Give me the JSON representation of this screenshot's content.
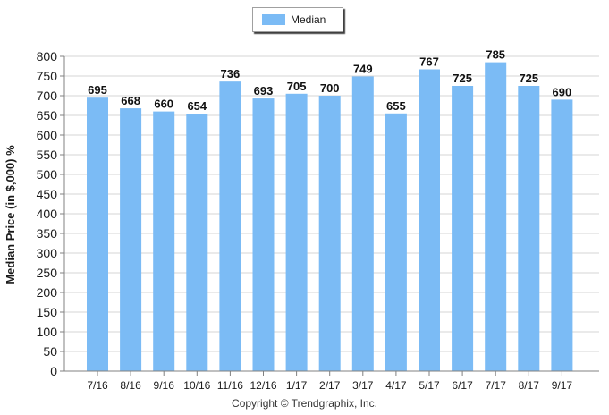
{
  "legend": {
    "label": "Median"
  },
  "footer": {
    "copyright": "Copyright © Trendgraphix, Inc."
  },
  "colors": {
    "bar": "#7bbbf5",
    "grid": "#d4d4d4",
    "axis": "#808080"
  },
  "chart_data": {
    "type": "bar",
    "categories": [
      "7/16",
      "8/16",
      "9/16",
      "10/16",
      "11/16",
      "12/16",
      "1/17",
      "2/17",
      "3/17",
      "4/17",
      "5/17",
      "6/17",
      "7/17",
      "8/17",
      "9/17"
    ],
    "series": [
      {
        "name": "Median",
        "values": [
          695,
          668,
          660,
          654,
          736,
          693,
          705,
          700,
          749,
          655,
          767,
          725,
          785,
          725,
          690
        ]
      }
    ],
    "ylabel": "Median Price (in $,000) %",
    "xlabel": "",
    "ylim": [
      0,
      800
    ],
    "yticks": [
      0,
      50,
      100,
      150,
      200,
      250,
      300,
      350,
      400,
      450,
      500,
      550,
      600,
      650,
      700,
      750,
      800
    ],
    "grid": true,
    "legend_position": "top-center"
  }
}
